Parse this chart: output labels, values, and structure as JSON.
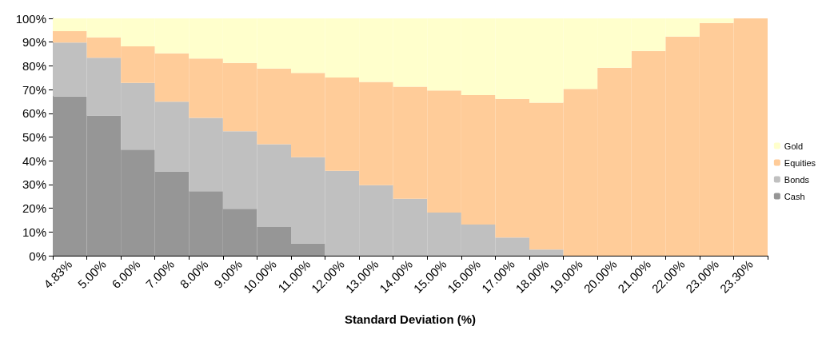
{
  "chart_data": {
    "type": "bar",
    "stacked": true,
    "xlabel": "Standard Deviation (%)",
    "categories": [
      "4.83%",
      "5.00%",
      "6.00%",
      "7.00%",
      "8.00%",
      "9.00%",
      "10.00%",
      "11.00%",
      "12.00%",
      "13.00%",
      "14.00%",
      "15.00%",
      "16.00%",
      "17.00%",
      "18.00%",
      "19.00%",
      "20.00%",
      "21.00%",
      "22.00%",
      "23.00%",
      "23.30%"
    ],
    "series": [
      {
        "name": "Cash",
        "color": "#969696",
        "values": [
          67.1,
          59.1,
          44.7,
          35.5,
          27.2,
          19.8,
          12.1,
          5.1,
          0,
          0,
          0,
          0,
          0,
          0,
          0,
          0,
          0,
          0,
          0,
          0,
          0
        ]
      },
      {
        "name": "Bonds",
        "color": "#c0c0c0",
        "values": [
          22.7,
          24.3,
          28.1,
          29.4,
          30.9,
          32.6,
          34.9,
          36.4,
          35.8,
          29.7,
          24.0,
          18.2,
          13.1,
          7.7,
          2.6,
          0,
          0,
          0,
          0,
          0,
          0
        ]
      },
      {
        "name": "Equities",
        "color": "#ffcc99",
        "values": [
          4.8,
          8.6,
          15.4,
          20.4,
          25.0,
          28.8,
          31.9,
          35.5,
          39.3,
          43.5,
          47.2,
          51.4,
          54.6,
          58.4,
          61.9,
          70.3,
          79.2,
          86.3,
          92.3,
          98.1,
          100
        ]
      },
      {
        "name": "Gold",
        "color": "#ffffcc",
        "values": [
          5.4,
          8.0,
          11.8,
          14.7,
          16.9,
          18.8,
          21.1,
          23.0,
          24.9,
          26.8,
          28.8,
          30.4,
          32.3,
          33.9,
          35.5,
          29.7,
          20.8,
          13.7,
          7.7,
          1.9,
          0
        ]
      }
    ],
    "ylim": [
      0,
      100
    ],
    "yticks": [
      {
        "value": 0,
        "label": "0%"
      },
      {
        "value": 10,
        "label": "10%"
      },
      {
        "value": 20,
        "label": "20%"
      },
      {
        "value": 30,
        "label": "30%"
      },
      {
        "value": 40,
        "label": "40%"
      },
      {
        "value": 50,
        "label": "50%"
      },
      {
        "value": 60,
        "label": "60%"
      },
      {
        "value": 70,
        "label": "70%"
      },
      {
        "value": 80,
        "label": "80%"
      },
      {
        "value": 90,
        "label": "90%"
      },
      {
        "value": 100,
        "label": "100%"
      }
    ],
    "grid": false,
    "legend": "right"
  }
}
